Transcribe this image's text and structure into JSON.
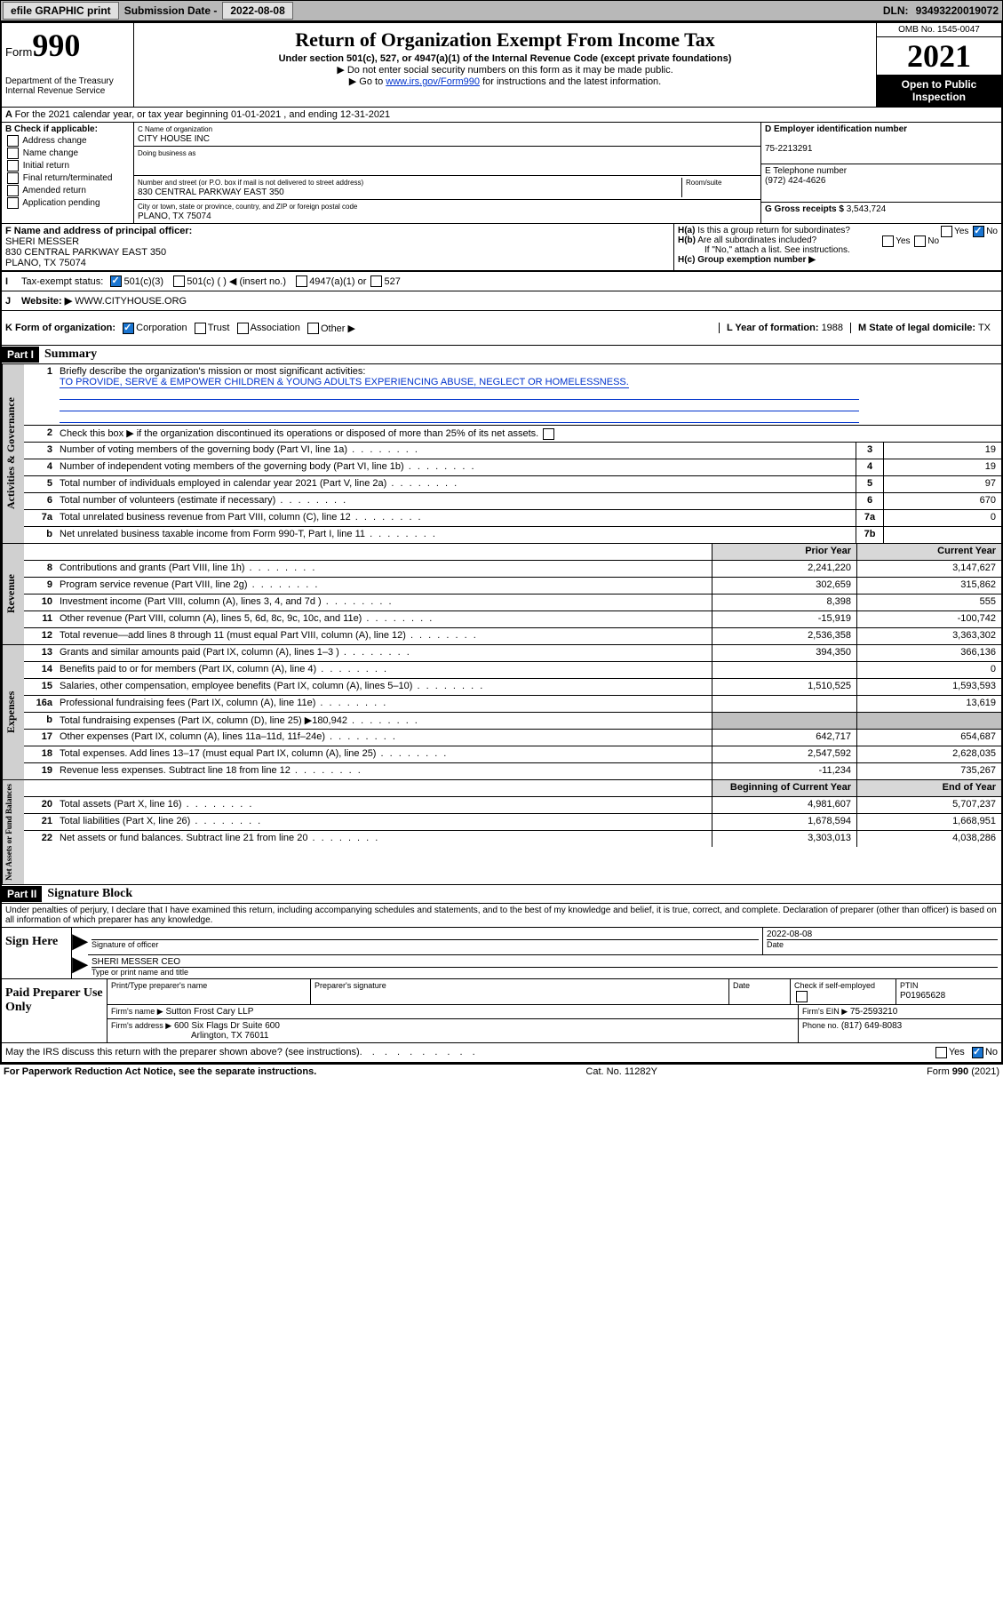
{
  "topbar": {
    "efile_btn": "efile GRAPHIC print",
    "sub_label": "Submission Date -",
    "sub_date": "2022-08-08",
    "dln_label": "DLN:",
    "dln": "93493220019072"
  },
  "header": {
    "form_prefix": "Form",
    "form_number": "990",
    "title": "Return of Organization Exempt From Income Tax",
    "subtitle": "Under section 501(c), 527, or 4947(a)(1) of the Internal Revenue Code (except private foundations)",
    "note1": "▶ Do not enter social security numbers on this form as it may be made public.",
    "note2_pre": "▶ Go to ",
    "note2_link": "www.irs.gov/Form990",
    "note2_post": " for instructions and the latest information.",
    "dept": "Department of the Treasury\nInternal Revenue Service",
    "omb": "OMB No. 1545-0047",
    "year": "2021",
    "open": "Open to Public Inspection"
  },
  "periodA": "For the 2021 calendar year, or tax year beginning 01-01-2021   , and ending 12-31-2021",
  "boxB": {
    "label": "B Check if applicable:",
    "items": [
      "Address change",
      "Name change",
      "Initial return",
      "Final return/terminated",
      "Amended return",
      "Application pending"
    ]
  },
  "boxC": {
    "name_label": "C Name of organization",
    "name": "CITY HOUSE INC",
    "dba_label": "Doing business as",
    "dba": "",
    "street_label": "Number and street (or P.O. box if mail is not delivered to street address)",
    "room_label": "Room/suite",
    "street": "830 CENTRAL PARKWAY EAST 350",
    "city_label": "City or town, state or province, country, and ZIP or foreign postal code",
    "city": "PLANO, TX  75074"
  },
  "boxD": {
    "label": "D Employer identification number",
    "val": "75-2213291"
  },
  "boxE": {
    "label": "E Telephone number",
    "val": "(972) 424-4626"
  },
  "boxG": {
    "label": "G Gross receipts $",
    "val": "3,543,724"
  },
  "boxF": {
    "label": "F Name and address of principal officer:",
    "line1": "SHERI MESSER",
    "line2": "830 CENTRAL PARKWAY EAST 350",
    "line3": "PLANO, TX  75074"
  },
  "boxH": {
    "a_label": "H(a)  Is this a group return for subordinates?",
    "b_label": "H(b)  Are all subordinates included?",
    "note": "If \"No,\" attach a list. See instructions.",
    "c_label": "H(c)  Group exemption number ▶",
    "yes": "Yes",
    "no": "No"
  },
  "lineI": {
    "label": "Tax-exempt status:",
    "opts": [
      "501(c)(3)",
      "501(c) (   ) ◀ (insert no.)",
      "4947(a)(1) or",
      "527"
    ]
  },
  "lineJ": {
    "label": "Website: ▶",
    "val": "WWW.CITYHOUSE.ORG"
  },
  "lineK": {
    "label": "K Form of organization:",
    "opts": [
      "Corporation",
      "Trust",
      "Association",
      "Other ▶"
    ]
  },
  "lineL": {
    "label": "L Year of formation:",
    "val": "1988"
  },
  "lineM": {
    "label": "M State of legal domicile:",
    "val": "TX"
  },
  "part1": {
    "bar": "Part I",
    "title": "Summary",
    "q1_label": "Briefly describe the organization's mission or most significant activities:",
    "q1_text": "TO PROVIDE, SERVE & EMPOWER CHILDREN & YOUNG ADULTS EXPERIENCING ABUSE, NEGLECT OR HOMELESSNESS.",
    "q2": "Check this box ▶  if the organization discontinued its operations or disposed of more than 25% of its net assets.",
    "rows_gov": [
      {
        "n": "3",
        "d": "Number of voting members of the governing body (Part VI, line 1a)",
        "box": "3",
        "v": "19"
      },
      {
        "n": "4",
        "d": "Number of independent voting members of the governing body (Part VI, line 1b)",
        "box": "4",
        "v": "19"
      },
      {
        "n": "5",
        "d": "Total number of individuals employed in calendar year 2021 (Part V, line 2a)",
        "box": "5",
        "v": "97"
      },
      {
        "n": "6",
        "d": "Total number of volunteers (estimate if necessary)",
        "box": "6",
        "v": "670"
      },
      {
        "n": "7a",
        "d": "Total unrelated business revenue from Part VIII, column (C), line 12",
        "box": "7a",
        "v": "0"
      },
      {
        "n": "b",
        "d": "Net unrelated business taxable income from Form 990-T, Part I, line 11",
        "box": "7b",
        "v": ""
      }
    ],
    "hdr_prior": "Prior Year",
    "hdr_current": "Current Year",
    "rows_rev": [
      {
        "n": "8",
        "d": "Contributions and grants (Part VIII, line 1h)",
        "p": "2,241,220",
        "c": "3,147,627"
      },
      {
        "n": "9",
        "d": "Program service revenue (Part VIII, line 2g)",
        "p": "302,659",
        "c": "315,862"
      },
      {
        "n": "10",
        "d": "Investment income (Part VIII, column (A), lines 3, 4, and 7d )",
        "p": "8,398",
        "c": "555"
      },
      {
        "n": "11",
        "d": "Other revenue (Part VIII, column (A), lines 5, 6d, 8c, 9c, 10c, and 11e)",
        "p": "-15,919",
        "c": "-100,742"
      },
      {
        "n": "12",
        "d": "Total revenue—add lines 8 through 11 (must equal Part VIII, column (A), line 12)",
        "p": "2,536,358",
        "c": "3,363,302"
      }
    ],
    "rows_exp": [
      {
        "n": "13",
        "d": "Grants and similar amounts paid (Part IX, column (A), lines 1–3 )",
        "p": "394,350",
        "c": "366,136"
      },
      {
        "n": "14",
        "d": "Benefits paid to or for members (Part IX, column (A), line 4)",
        "p": "",
        "c": "0"
      },
      {
        "n": "15",
        "d": "Salaries, other compensation, employee benefits (Part IX, column (A), lines 5–10)",
        "p": "1,510,525",
        "c": "1,593,593"
      },
      {
        "n": "16a",
        "d": "Professional fundraising fees (Part IX, column (A), line 11e)",
        "p": "",
        "c": "13,619"
      },
      {
        "n": "b",
        "d": "Total fundraising expenses (Part IX, column (D), line 25) ▶180,942",
        "p": "shade",
        "c": "shade"
      },
      {
        "n": "17",
        "d": "Other expenses (Part IX, column (A), lines 11a–11d, 11f–24e)",
        "p": "642,717",
        "c": "654,687"
      },
      {
        "n": "18",
        "d": "Total expenses. Add lines 13–17 (must equal Part IX, column (A), line 25)",
        "p": "2,547,592",
        "c": "2,628,035"
      },
      {
        "n": "19",
        "d": "Revenue less expenses. Subtract line 18 from line 12",
        "p": "-11,234",
        "c": "735,267"
      }
    ],
    "hdr_beg": "Beginning of Current Year",
    "hdr_end": "End of Year",
    "rows_net": [
      {
        "n": "20",
        "d": "Total assets (Part X, line 16)",
        "p": "4,981,607",
        "c": "5,707,237"
      },
      {
        "n": "21",
        "d": "Total liabilities (Part X, line 26)",
        "p": "1,678,594",
        "c": "1,668,951"
      },
      {
        "n": "22",
        "d": "Net assets or fund balances. Subtract line 21 from line 20",
        "p": "3,303,013",
        "c": "4,038,286"
      }
    ],
    "vtab_gov": "Activities & Governance",
    "vtab_rev": "Revenue",
    "vtab_exp": "Expenses",
    "vtab_net": "Net Assets or Fund Balances"
  },
  "part2": {
    "bar": "Part II",
    "title": "Signature Block",
    "decl": "Under penalties of perjury, I declare that I have examined this return, including accompanying schedules and statements, and to the best of my knowledge and belief, it is true, correct, and complete. Declaration of preparer (other than officer) is based on all information of which preparer has any knowledge.",
    "sign_here": "Sign Here",
    "sig_officer": "Signature of officer",
    "sig_date_label": "Date",
    "sig_date": "2022-08-08",
    "sig_name": "SHERI MESSER CEO",
    "sig_name_label": "Type or print name and title",
    "paid": "Paid Preparer Use Only",
    "pp_name_label": "Print/Type preparer's name",
    "pp_sig_label": "Preparer's signature",
    "pp_date_label": "Date",
    "pp_check_label": "Check         if self-employed",
    "pp_ptin_label": "PTIN",
    "pp_ptin": "P01965628",
    "firm_name_label": "Firm's name    ▶",
    "firm_name": "Sutton Frost Cary LLP",
    "firm_ein_label": "Firm's EIN ▶",
    "firm_ein": "75-2593210",
    "firm_addr_label": "Firm's address ▶",
    "firm_addr1": "600 Six Flags Dr Suite 600",
    "firm_addr2": "Arlington, TX  76011",
    "firm_phone_label": "Phone no.",
    "firm_phone": "(817) 649-8083",
    "discuss": "May the IRS discuss this return with the preparer shown above? (see instructions)",
    "yes": "Yes",
    "no": "No"
  },
  "footer": {
    "left": "For Paperwork Reduction Act Notice, see the separate instructions.",
    "mid": "Cat. No. 11282Y",
    "right": "Form 990 (2021)"
  }
}
